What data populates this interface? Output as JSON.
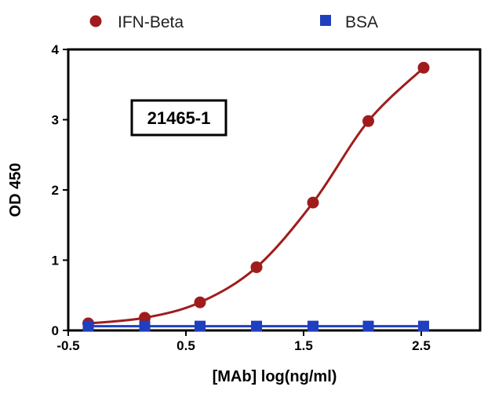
{
  "chart_data": {
    "type": "line",
    "title": "",
    "xlabel": "[MAb] log(ng/ml)",
    "ylabel": "OD 450",
    "xlim": [
      -0.5,
      3.0
    ],
    "ylim": [
      0,
      4
    ],
    "xticks": [
      -0.5,
      0.5,
      1.5,
      2.5
    ],
    "xtick_labels": [
      "-0.5",
      "0.5",
      "1.5",
      "2.5"
    ],
    "yticks": [
      0,
      1,
      2,
      3,
      4
    ],
    "ytick_labels": [
      "0",
      "1",
      "2",
      "3",
      "4"
    ],
    "grid": false,
    "legend_position": "top",
    "annotation": "21465-1",
    "series": [
      {
        "name": "IFN-Beta",
        "marker": "circle",
        "color": "#a01c1c",
        "x": [
          -0.33,
          0.15,
          0.62,
          1.1,
          1.58,
          2.05,
          2.52
        ],
        "y": [
          0.1,
          0.18,
          0.4,
          0.9,
          1.82,
          2.98,
          3.74
        ]
      },
      {
        "name": "BSA",
        "marker": "square",
        "color": "#1f3fbf",
        "x": [
          -0.33,
          0.15,
          0.62,
          1.1,
          1.58,
          2.05,
          2.52
        ],
        "y": [
          0.06,
          0.06,
          0.06,
          0.06,
          0.06,
          0.06,
          0.06
        ]
      }
    ]
  }
}
